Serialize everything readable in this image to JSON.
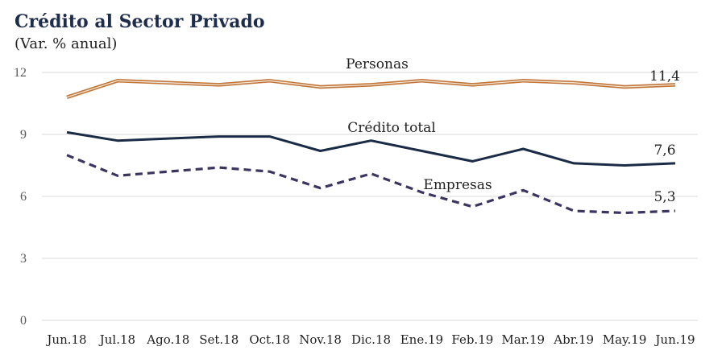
{
  "header": {
    "title": "Crédito al Sector Privado",
    "subtitle": "(Var. % anual)"
  },
  "chart_data": {
    "type": "line",
    "categories": [
      "Jun.18",
      "Jul.18",
      "Ago.18",
      "Set.18",
      "Oct.18",
      "Nov.18",
      "Dic.18",
      "Ene.19",
      "Feb.19",
      "Mar.19",
      "Abr.19",
      "May.19",
      "Jun.19"
    ],
    "ylim": [
      0,
      12
    ],
    "yticks": [
      0,
      3,
      6,
      9,
      12
    ],
    "grid": true,
    "series": [
      {
        "name": "Personas",
        "values": [
          10.8,
          11.6,
          11.5,
          11.4,
          11.6,
          11.3,
          11.4,
          11.6,
          11.4,
          11.6,
          11.5,
          11.3,
          11.4
        ],
        "color": "#c0773c",
        "style": "double",
        "end_label": "11,4"
      },
      {
        "name": "Crédito total",
        "values": [
          9.1,
          8.7,
          8.8,
          8.9,
          8.9,
          8.2,
          8.7,
          8.2,
          7.7,
          8.3,
          7.6,
          7.5,
          7.6
        ],
        "color": "#1a2b45",
        "style": "solid",
        "end_label": "7,6"
      },
      {
        "name": "Empresas",
        "values": [
          8.0,
          7.0,
          7.2,
          7.4,
          7.2,
          6.4,
          7.1,
          6.2,
          5.5,
          6.3,
          5.3,
          5.2,
          5.3
        ],
        "color": "#3d3560",
        "style": "dashed",
        "end_label": "5,3"
      }
    ]
  }
}
